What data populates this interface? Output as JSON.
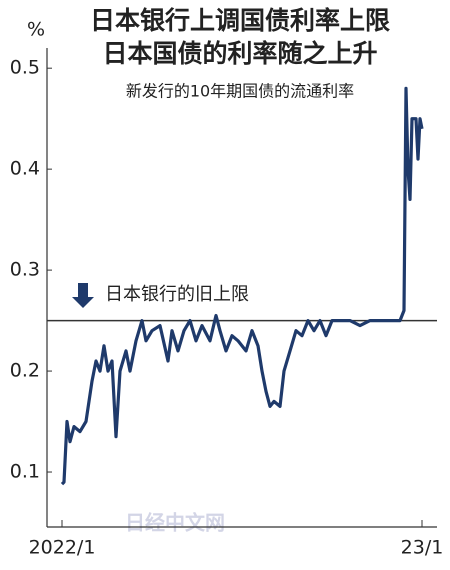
{
  "chart_data": {
    "type": "line",
    "title": [
      "日本银行上调国债利率上限",
      "日本国债的利率随之上升"
    ],
    "subtitle": "新发行的10年期国债的流通利率",
    "y_unit": "%",
    "watermark": "日经中文网",
    "reference_line": {
      "value": 0.25,
      "label": "日本银行的旧上限",
      "color": "#333333"
    },
    "xlim": [
      -15,
      375
    ],
    "xticks": [
      {
        "value": 0,
        "label": "2022/1"
      },
      {
        "value": 360,
        "label": "23/1"
      }
    ],
    "ylim": [
      0.05,
      0.52
    ],
    "yticks": [
      0.1,
      0.2,
      0.3,
      0.4,
      0.5
    ],
    "series": [
      {
        "color": "#1f3a6b",
        "x": [
          0,
          2,
          5,
          8,
          12,
          18,
          24,
          30,
          34,
          38,
          42,
          46,
          50,
          54,
          58,
          64,
          68,
          74,
          80,
          84,
          90,
          98,
          106,
          110,
          116,
          122,
          128,
          134,
          140,
          148,
          154,
          158,
          164,
          170,
          176,
          184,
          190,
          196,
          200,
          204,
          208,
          212,
          218,
          222,
          228,
          234,
          240,
          246,
          252,
          258,
          264,
          270,
          278,
          288,
          298,
          308,
          318,
          328,
          338,
          342,
          344,
          346,
          348,
          350,
          352,
          354,
          356,
          358,
          360
        ],
        "values": [
          0.088,
          0.09,
          0.15,
          0.13,
          0.145,
          0.14,
          0.15,
          0.19,
          0.21,
          0.2,
          0.225,
          0.2,
          0.21,
          0.135,
          0.2,
          0.22,
          0.2,
          0.23,
          0.25,
          0.23,
          0.24,
          0.245,
          0.21,
          0.24,
          0.22,
          0.24,
          0.25,
          0.23,
          0.245,
          0.23,
          0.255,
          0.24,
          0.22,
          0.235,
          0.23,
          0.22,
          0.24,
          0.225,
          0.2,
          0.18,
          0.165,
          0.17,
          0.165,
          0.2,
          0.22,
          0.24,
          0.235,
          0.25,
          0.24,
          0.25,
          0.235,
          0.25,
          0.25,
          0.25,
          0.245,
          0.25,
          0.25,
          0.25,
          0.25,
          0.26,
          0.48,
          0.4,
          0.37,
          0.45,
          0.45,
          0.45,
          0.41,
          0.45,
          0.44
        ]
      }
    ]
  }
}
